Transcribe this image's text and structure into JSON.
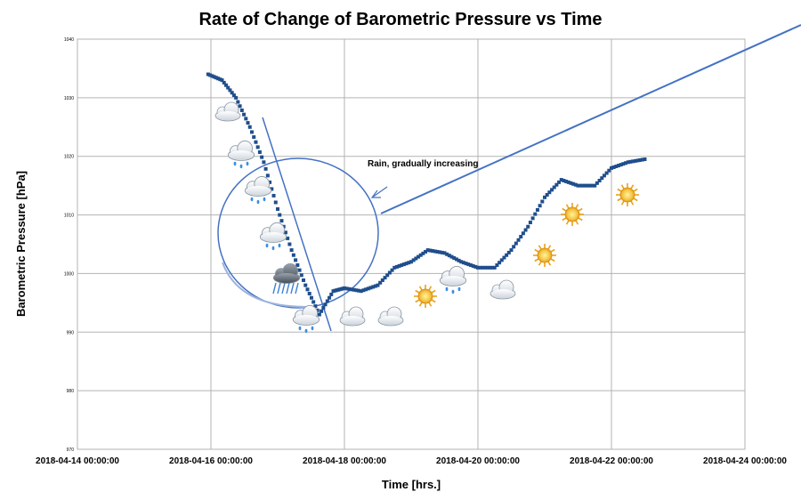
{
  "chart_data": {
    "type": "scatter",
    "title": "Rate of Change of Barometric Pressure vs Time",
    "xlabel": "Time [hrs.]",
    "ylabel": "Barometric Pressure [hPa]",
    "xlim": [
      "2018-04-14 00:00:00",
      "2018-04-24 00:00:00"
    ],
    "ylim": [
      970,
      1040
    ],
    "x_ticks": [
      "2018-04-14 00:00:00",
      "2018-04-16 00:00:00",
      "2018-04-18 00:00:00",
      "2018-04-20 00:00:00",
      "2018-04-22 00:00:00",
      "2018-04-24 00:00:00"
    ],
    "y_ticks": [
      "970",
      "980",
      "990",
      "1000",
      "1010",
      "1020",
      "1030",
      "1040"
    ],
    "grid": true,
    "legend": "none",
    "marker_color": "#1f4e8c",
    "annotation_color": "#4472c4",
    "series": [
      {
        "x": [
          "2018-04-15 23:00",
          "2018-04-16 04:00",
          "2018-04-16 09:00",
          "2018-04-16 14:00",
          "2018-04-16 19:00",
          "2018-04-17 00:00",
          "2018-04-17 05:00",
          "2018-04-17 10:00",
          "2018-04-17 15:00",
          "2018-04-17 20:00",
          "2018-04-18 00:00",
          "2018-04-18 06:00",
          "2018-04-18 12:00",
          "2018-04-18 18:00",
          "2018-04-19 00:00",
          "2018-04-19 06:00",
          "2018-04-19 12:00",
          "2018-04-19 18:00",
          "2018-04-20 00:00",
          "2018-04-20 06:00",
          "2018-04-20 12:00",
          "2018-04-20 18:00",
          "2018-04-21 00:00",
          "2018-04-21 06:00",
          "2018-04-21 12:00",
          "2018-04-21 18:00",
          "2018-04-22 00:00",
          "2018-04-22 06:00",
          "2018-04-22 12:00"
        ],
        "values": [
          1034,
          1033,
          1030,
          1025,
          1019,
          1011,
          1004,
          998,
          993,
          997,
          997.5,
          997,
          998,
          1001,
          1002,
          1004,
          1003.5,
          1002,
          1001,
          1001,
          1004,
          1008,
          1013,
          1016,
          1015,
          1015,
          1018,
          1019,
          1019.5
        ]
      }
    ],
    "annotations": {
      "rain_label": "Rain, gradually increasing"
    },
    "weather_icons": [
      "cloud-icon",
      "rain-cloud-icon",
      "rain-cloud-icon",
      "rain-cloud-icon",
      "storm-cloud-icon",
      "rain-cloud-icon",
      "cloud-icon",
      "cloud-icon",
      "sun-icon",
      "rain-cloud-icon",
      "cloud-icon",
      "sun-icon",
      "sun-icon",
      "sun-icon"
    ]
  }
}
